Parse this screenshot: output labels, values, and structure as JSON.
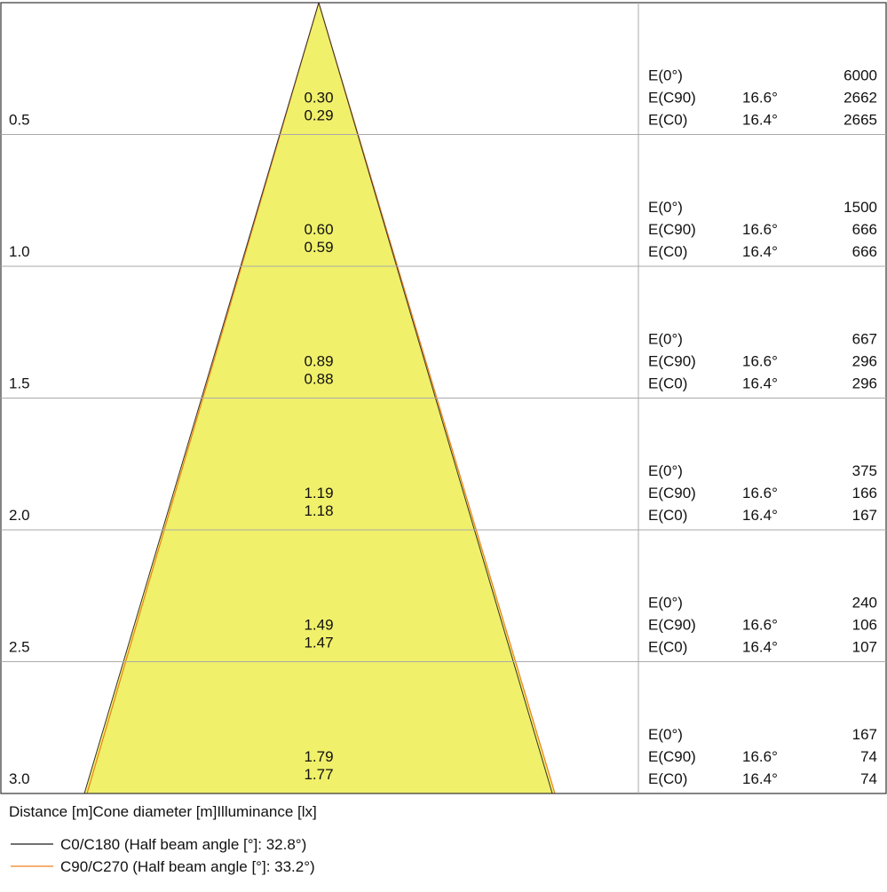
{
  "rows": [
    {
      "distance": "0.5",
      "cone": [
        "0.30",
        "0.29"
      ],
      "illuminance": [
        {
          "label": "E(0°)",
          "value": "6000"
        },
        {
          "label": "E(C90)",
          "angle": "16.6°",
          "value": "2662"
        },
        {
          "label": "E(C0)",
          "angle": "16.4°",
          "value": "2665"
        }
      ]
    },
    {
      "distance": "1.0",
      "cone": [
        "0.60",
        "0.59"
      ],
      "illuminance": [
        {
          "label": "E(0°)",
          "value": "1500"
        },
        {
          "label": "E(C90)",
          "angle": "16.6°",
          "value": "666"
        },
        {
          "label": "E(C0)",
          "angle": "16.4°",
          "value": "666"
        }
      ]
    },
    {
      "distance": "1.5",
      "cone": [
        "0.89",
        "0.88"
      ],
      "illuminance": [
        {
          "label": "E(0°)",
          "value": "667"
        },
        {
          "label": "E(C90)",
          "angle": "16.6°",
          "value": "296"
        },
        {
          "label": "E(C0)",
          "angle": "16.4°",
          "value": "296"
        }
      ]
    },
    {
      "distance": "2.0",
      "cone": [
        "1.19",
        "1.18"
      ],
      "illuminance": [
        {
          "label": "E(0°)",
          "value": "375"
        },
        {
          "label": "E(C90)",
          "angle": "16.6°",
          "value": "166"
        },
        {
          "label": "E(C0)",
          "angle": "16.4°",
          "value": "167"
        }
      ]
    },
    {
      "distance": "2.5",
      "cone": [
        "1.49",
        "1.47"
      ],
      "illuminance": [
        {
          "label": "E(0°)",
          "value": "240"
        },
        {
          "label": "E(C90)",
          "angle": "16.6°",
          "value": "106"
        },
        {
          "label": "E(C0)",
          "angle": "16.4°",
          "value": "107"
        }
      ]
    },
    {
      "distance": "3.0",
      "cone": [
        "1.79",
        "1.77"
      ],
      "illuminance": [
        {
          "label": "E(0°)",
          "value": "167"
        },
        {
          "label": "E(C90)",
          "angle": "16.6°",
          "value": "74"
        },
        {
          "label": "E(C0)",
          "angle": "16.4°",
          "value": "74"
        }
      ]
    }
  ],
  "footer": {
    "headings": [
      "Distance [m]",
      "Cone diameter [m]",
      "Illuminance [lx]"
    ],
    "legend": [
      {
        "label": "C0/C180 (Half beam angle [°]: 32.8°)",
        "color": "#1a1a1a"
      },
      {
        "label": "C90/C270 (Half beam angle [°]: 33.2°)",
        "color": "#f07f1e"
      }
    ]
  }
}
